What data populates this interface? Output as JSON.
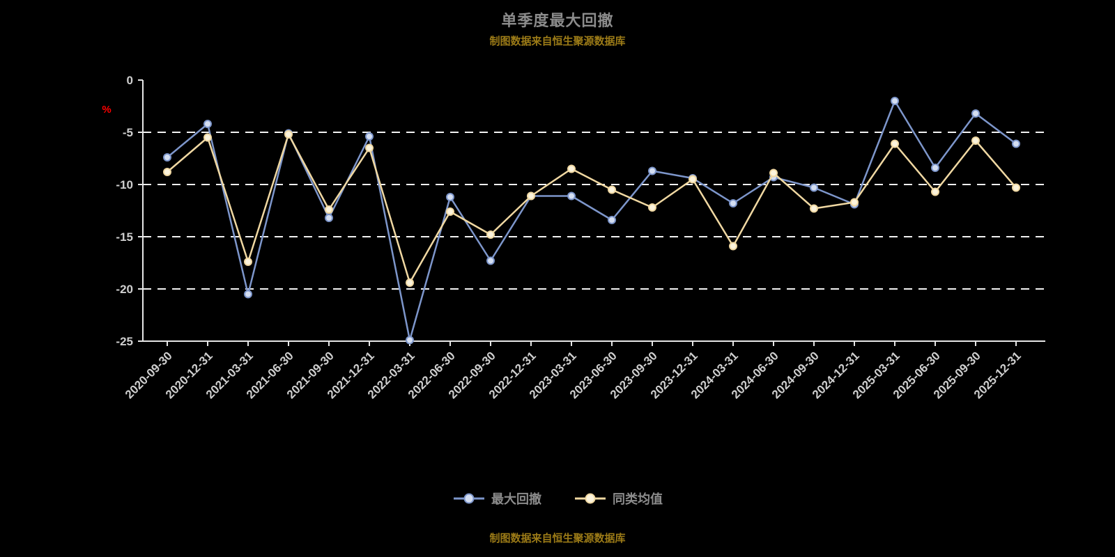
{
  "title": "单季度最大回撤",
  "subtitle_top": "制图数据来自恒生聚源数据库",
  "subtitle_bottom": "制图数据来自恒生聚源数据库",
  "y_axis": {
    "unit_label": "%",
    "ticks": [
      0,
      -5,
      -10,
      -15,
      -20,
      -25
    ]
  },
  "colors": {
    "background": "#000000",
    "title": "#8c8c8c",
    "subtitle": "#9c7b17",
    "axis": "#e6e6e6",
    "grid": "#ffffff",
    "tick_label": "#cfcfcf",
    "unit_label": "#ff0000",
    "legend_text": "#8c8c8c"
  },
  "chart_data": {
    "type": "line",
    "title": "单季度最大回撤",
    "ylabel": "%",
    "ylim": [
      -25,
      0
    ],
    "grid": "horizontal-dashed",
    "legend_position": "bottom",
    "categories": [
      "2020-09-30",
      "2020-12-31",
      "2021-03-31",
      "2021-06-30",
      "2021-09-30",
      "2021-12-31",
      "2022-03-31",
      "2022-06-30",
      "2022-09-30",
      "2022-12-31",
      "2023-03-31",
      "2023-06-30",
      "2023-09-30",
      "2023-12-31",
      "2024-03-31",
      "2024-06-30",
      "2024-09-30",
      "2024-12-31",
      "2025-03-31",
      "2025-06-30",
      "2025-09-30",
      "2025-12-31"
    ],
    "series": [
      {
        "name": "最大回撤",
        "color": "#7d96cb",
        "marker_fill": "#d4def1",
        "values": [
          -7.4,
          -4.2,
          -20.5,
          -5.1,
          -13.2,
          -5.4,
          -24.9,
          -11.2,
          -17.3,
          -11.1,
          -11.1,
          -13.4,
          -8.7,
          -9.4,
          -11.8,
          -9.3,
          -10.3,
          -11.9,
          -2.0,
          -8.4,
          -3.2,
          -6.1
        ]
      },
      {
        "name": "同类均值",
        "color": "#f0d8a2",
        "marker_fill": "#fbf3dc",
        "values": [
          -8.8,
          -5.5,
          -17.4,
          -5.2,
          -12.4,
          -6.5,
          -19.4,
          -12.6,
          -14.8,
          -11.1,
          -8.5,
          -10.5,
          -12.2,
          -9.5,
          -15.9,
          -8.9,
          -12.3,
          -11.7,
          -6.1,
          -10.7,
          -5.8,
          -10.3
        ]
      }
    ]
  }
}
